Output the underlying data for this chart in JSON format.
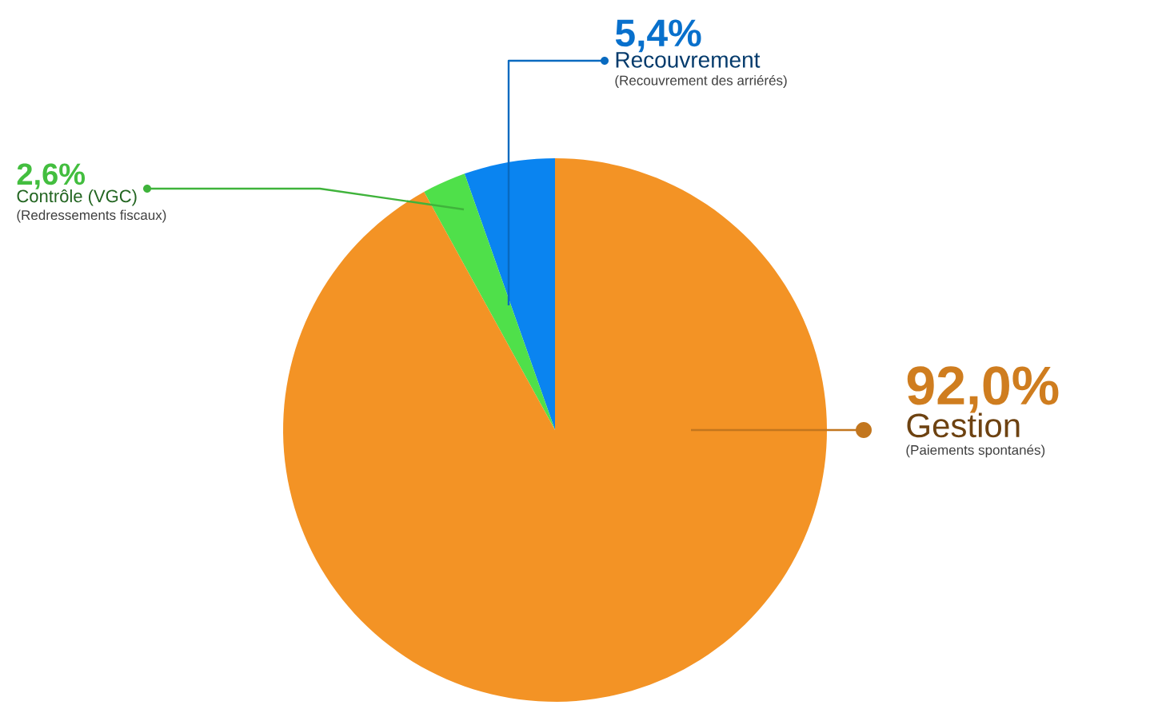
{
  "chart_data": {
    "type": "pie",
    "categories": [
      "Recouvrement",
      "Contrôle (VGC)",
      "Gestion"
    ],
    "values": [
      5.4,
      2.6,
      92.0
    ],
    "value_labels": [
      "5,4%",
      "2,6%",
      "92,0%"
    ],
    "colors": [
      "#0a84f0",
      "#4fe04a",
      "#f39325"
    ],
    "annotations": [
      {
        "text": "(Recouvrement des arriérés)",
        "x": "Recouvrement"
      },
      {
        "text": "(Redressements fiscaux)",
        "x": "Contrôle (VGC)"
      },
      {
        "text": "(Paiements spontanés)",
        "x": "Gestion"
      }
    ],
    "data_labels": true
  }
}
